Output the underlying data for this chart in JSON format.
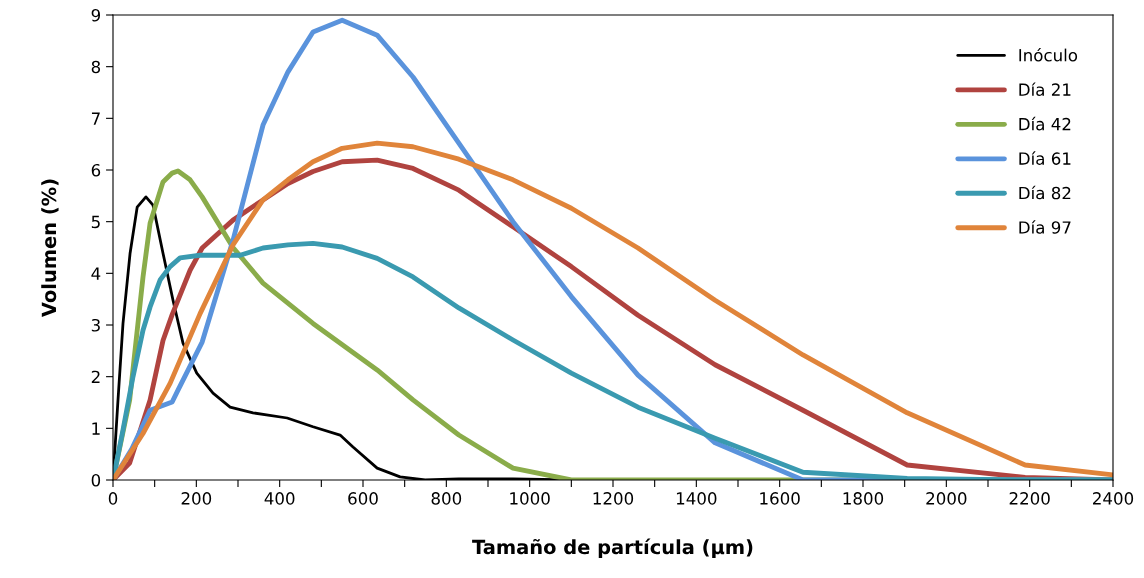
{
  "chart_data": {
    "type": "line",
    "xlabel": "Tamaño de partícula (µm)",
    "ylabel": "Volumen (%)",
    "xlim": [
      0,
      2400
    ],
    "ylim": [
      0,
      9
    ],
    "xticks": [
      0,
      {
        "value": 100,
        "label": null
      },
      200,
      {
        "value": 300,
        "label": null
      },
      400,
      {
        "value": 500,
        "label": null
      },
      600,
      {
        "value": 700,
        "label": null
      },
      800,
      {
        "value": 900,
        "label": null
      },
      1000,
      {
        "value": 1100,
        "label": null
      },
      1200,
      {
        "value": 1300,
        "label": null
      },
      1400,
      {
        "value": 1500,
        "label": null
      },
      1600,
      {
        "value": 1700,
        "label": null
      },
      1800,
      {
        "value": 1900,
        "label": null
      },
      2000,
      {
        "value": 2100,
        "label": null
      },
      2200,
      {
        "value": 2300,
        "label": null
      },
      2400
    ],
    "yticks": [
      0,
      1,
      2,
      3,
      4,
      5,
      6,
      7,
      8,
      9
    ],
    "grid": false,
    "legend": "top right",
    "marker": "none",
    "line_style": "solid",
    "series": [
      {
        "name": "Inóculo",
        "color": "#000000",
        "x": [
          0,
          12,
          24,
          41,
          58,
          79,
          96,
          120,
          144,
          168,
          201,
          240,
          281,
          336,
          418,
          480,
          545,
          576,
          634,
          689,
          749,
          830,
          960,
          1100
        ],
        "values": [
          0,
          1.55,
          3.03,
          4.39,
          5.28,
          5.48,
          5.32,
          4.39,
          3.48,
          2.65,
          2.07,
          1.68,
          1.41,
          1.3,
          1.2,
          1.03,
          0.87,
          0.64,
          0.23,
          0.06,
          0,
          0.02,
          0.02,
          0
        ]
      },
      {
        "name": "Día 21",
        "color": "#b0433f",
        "x": [
          0,
          40,
          89,
          120,
          142,
          185,
          214,
          288,
          360,
          420,
          480,
          550,
          634,
          720,
          830,
          960,
          1100,
          1260,
          1445,
          1656,
          1906,
          2189,
          2400
        ],
        "values": [
          0,
          0.33,
          1.55,
          2.7,
          3.2,
          4.06,
          4.49,
          5.03,
          5.42,
          5.74,
          5.97,
          6.16,
          6.19,
          6.03,
          5.61,
          4.9,
          4.13,
          3.19,
          2.23,
          1.35,
          0.29,
          0.05,
          0
        ]
      },
      {
        "name": "Día 42",
        "color": "#8aac4a",
        "x": [
          0,
          40,
          72,
          89,
          120,
          142,
          156,
          185,
          214,
          288,
          360,
          480,
          634,
          720,
          830,
          960,
          1100,
          1260,
          1445,
          1656,
          1906,
          2189,
          2400
        ],
        "values": [
          0,
          1.55,
          3.93,
          4.97,
          5.77,
          5.94,
          5.98,
          5.81,
          5.48,
          4.5,
          3.81,
          3.03,
          2.13,
          1.55,
          0.87,
          0.23,
          0,
          0,
          0,
          0,
          0,
          0,
          0
        ]
      },
      {
        "name": "Día 61",
        "color": "#5a93dc",
        "x": [
          0,
          45,
          89,
          142,
          156,
          214,
          288,
          360,
          420,
          480,
          550,
          634,
          720,
          830,
          960,
          1100,
          1260,
          1445,
          1656,
          1906,
          2189,
          2400
        ],
        "values": [
          0,
          0.6,
          1.35,
          1.51,
          1.74,
          2.67,
          4.64,
          6.87,
          7.9,
          8.67,
          8.9,
          8.61,
          7.8,
          6.52,
          5.0,
          3.55,
          2.03,
          0.72,
          0,
          0,
          0,
          0
        ]
      },
      {
        "name": "Día 82",
        "color": "#3a9ab0",
        "x": [
          0,
          24,
          48,
          72,
          89,
          113,
          137,
          161,
          209,
          305,
          360,
          420,
          480,
          550,
          634,
          720,
          830,
          960,
          1100,
          1260,
          1445,
          1656,
          1906,
          2189,
          2400
        ],
        "values": [
          0,
          0.97,
          2.0,
          2.9,
          3.35,
          3.87,
          4.13,
          4.3,
          4.35,
          4.35,
          4.49,
          4.55,
          4.58,
          4.51,
          4.29,
          3.93,
          3.33,
          2.71,
          2.07,
          1.41,
          0.81,
          0.15,
          0.03,
          0,
          0
        ]
      },
      {
        "name": "Día 97",
        "color": "#e0843a",
        "x": [
          0,
          72,
          137,
          209,
          288,
          360,
          420,
          480,
          550,
          634,
          720,
          830,
          960,
          1100,
          1260,
          1445,
          1656,
          1906,
          2189,
          2400
        ],
        "values": [
          0,
          0.9,
          1.87,
          3.22,
          4.55,
          5.42,
          5.81,
          6.16,
          6.42,
          6.52,
          6.45,
          6.21,
          5.81,
          5.26,
          4.49,
          3.48,
          2.42,
          1.3,
          0.29,
          0.1
        ]
      }
    ]
  }
}
